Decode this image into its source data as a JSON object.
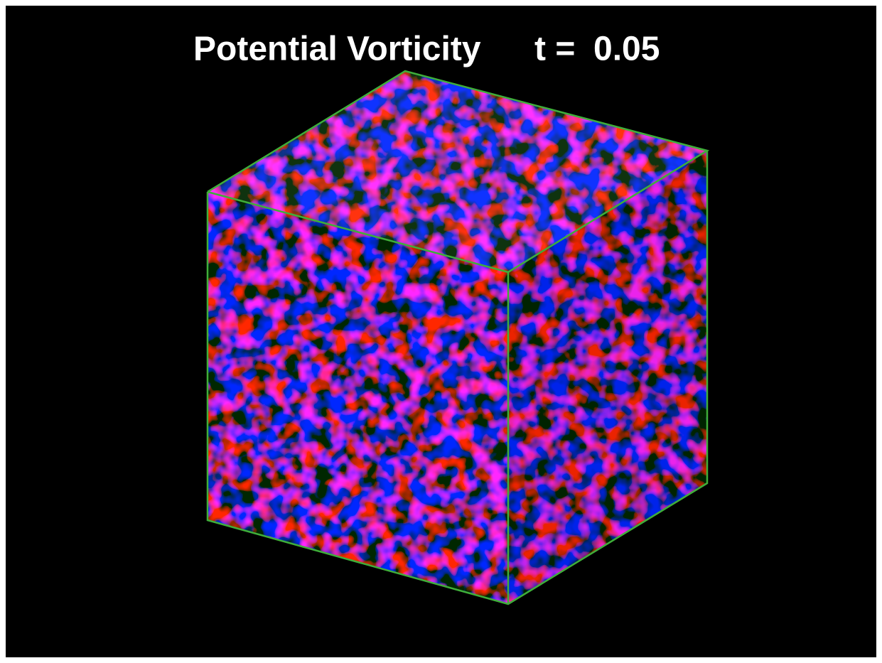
{
  "title": "Potential Vorticity",
  "time_label": "t =",
  "time": "0.05"
}
